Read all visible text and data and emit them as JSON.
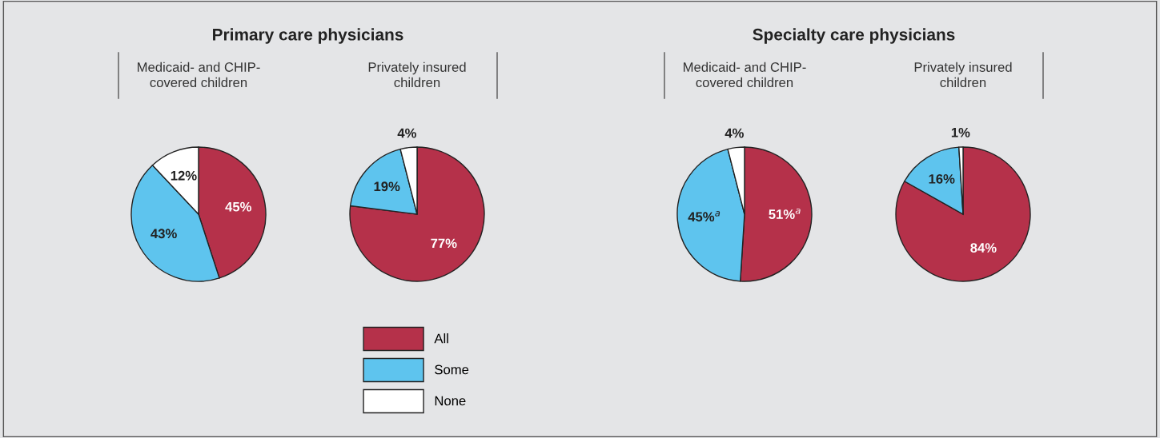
{
  "chart_data": [
    {
      "type": "pie",
      "title": "Primary care physicians",
      "subtitle": "Medicaid- and CHIP-\ncovered children",
      "categories": [
        "All",
        "Some",
        "None"
      ],
      "values": [
        45,
        43,
        12
      ],
      "value_labels": [
        "45%",
        "43%",
        "12%"
      ],
      "colors": [
        "#b5314a",
        "#5ec4ee",
        "#ffffff"
      ],
      "legend": "bottom"
    },
    {
      "type": "pie",
      "subtitle": "Privately insured\nchildren",
      "categories": [
        null,
        null,
        null
      ],
      "values": [
        77,
        19,
        4
      ],
      "value_labels": [
        "77%",
        "19%",
        "4%"
      ],
      "colors": [
        "#b5314a",
        "#5ec4ee",
        "#ffffff"
      ]
    },
    {
      "type": "pie",
      "title": "Specialty care physicians",
      "subtitle": "Medicaid- and CHIP-\ncovered children",
      "categories": [
        null,
        null,
        null
      ],
      "values": [
        51,
        45,
        4
      ],
      "value_labels": [
        "51%$^{a}$",
        "45%$^{a}$",
        "4%"
      ],
      "colors": [
        "#b5314a",
        "#5ec4ee",
        "#ffffff"
      ]
    },
    {
      "type": "pie",
      "subtitle": "Privately insured\nchildren",
      "categories": [
        null,
        null,
        null
      ],
      "values": [
        84,
        16,
        1
      ],
      "value_labels": [
        "84%",
        "16%",
        "1%"
      ],
      "colors": [
        "#b5314a",
        "#5ec4ee",
        "#ffffff"
      ]
    }
  ]
}
